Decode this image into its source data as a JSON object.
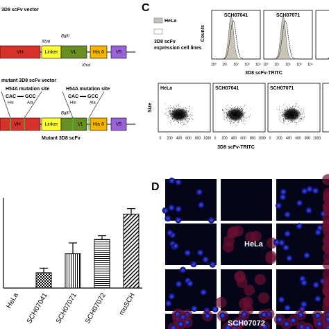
{
  "panel_a": {
    "vector_title": "3D8 scFv vector",
    "segments": [
      "VH",
      "Linker",
      "VL",
      "His 6",
      "V5"
    ],
    "sites": [
      "XbaI",
      "BglII",
      "XhoI"
    ],
    "mutant_title": "mutant 3D8 scFv vector",
    "mutation_site": "H54A mutation site",
    "codon_from": "CAC",
    "codon_to": "GCC",
    "aa_from": "His",
    "aa_to": "Ala",
    "mutant_label": "Mutant 3D8 scFv"
  },
  "panel_b": {
    "categories": [
      "HeLa",
      "SCH07041",
      "SCH07071",
      "SCH07072",
      "muSCH"
    ],
    "values": [
      0,
      17,
      38,
      54,
      82
    ],
    "errors": [
      0,
      5,
      12,
      4,
      6
    ],
    "ylim": [
      0,
      100
    ]
  },
  "panel_c": {
    "letter": "C",
    "legend": [
      "HeLa",
      "3D8 scFv",
      "expression cell lines"
    ],
    "histograms": [
      "SCH07041",
      "SCH07071"
    ],
    "counts_label": "Counts",
    "hist_ticks": [
      "10⁰",
      "10¹",
      "10²",
      "10³",
      "10⁴"
    ],
    "x_label": "3D8 scFv-TRITC",
    "scatters": [
      "HeLa",
      "SCH07041",
      "SCH07071"
    ],
    "size_label": "Size",
    "scatter_ticks": [
      "0",
      "200",
      "400",
      "600",
      "800",
      "1000"
    ]
  },
  "panel_d": {
    "letter": "D",
    "labels": [
      "HeLa",
      "SCH07072"
    ]
  }
}
